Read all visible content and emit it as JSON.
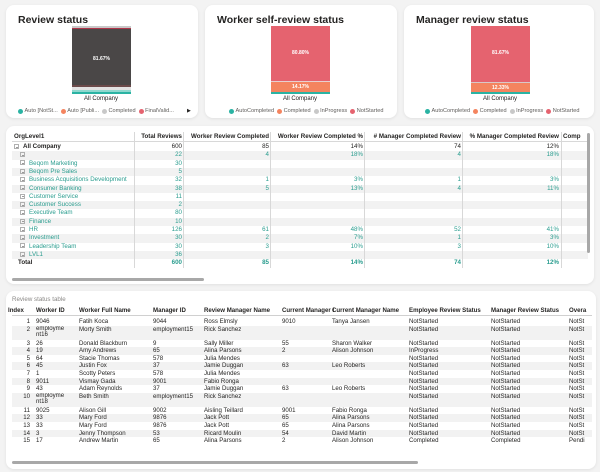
{
  "charts": {
    "review_status": {
      "title": "Review status",
      "category": "All Company",
      "label": "81.67%",
      "legend": [
        {
          "name": "Auto [NotSt...",
          "color": "#2ab3a3"
        },
        {
          "name": "Auto [Publi...",
          "color": "#f4845f"
        },
        {
          "name": "Completed",
          "color": "#c8c8c8"
        },
        {
          "name": "FinalValid...",
          "color": "#e5636f"
        }
      ],
      "more_icon": "triangle-right-icon"
    },
    "worker_self_review": {
      "title": "Worker self-review status",
      "category": "All Company",
      "labels": {
        "not_started": "80.80%",
        "completed": "14.17%"
      },
      "legend": [
        {
          "name": "AutoCompleted",
          "color": "#2ab3a3"
        },
        {
          "name": "Completed",
          "color": "#f4845f"
        },
        {
          "name": "InProgress",
          "color": "#c8c8c8"
        },
        {
          "name": "NotStarted",
          "color": "#e5636f"
        }
      ]
    },
    "manager_review": {
      "title": "Manager review status",
      "category": "All Company",
      "labels": {
        "not_started": "81.67%",
        "completed": "12.33%"
      },
      "legend": [
        {
          "name": "AutoCompleted",
          "color": "#2ab3a3"
        },
        {
          "name": "Completed",
          "color": "#f4845f"
        },
        {
          "name": "InProgress",
          "color": "#c8c8c8"
        },
        {
          "name": "NotStarted",
          "color": "#e5636f"
        }
      ]
    }
  },
  "matrix": {
    "headers": [
      "OrgLevel1",
      "Total Reviews",
      "Worker Review Completed",
      "Worker Review Completed %",
      "# Manager Completed Review",
      "% Manager Completed Review",
      "Comp"
    ],
    "rows": [
      {
        "org": "All Company",
        "total": "600",
        "wrc": "85",
        "wrcp": "14%",
        "mcr": "74",
        "pmcr": "12%",
        "top": true
      },
      {
        "org": "",
        "total": "22",
        "wrc": "4",
        "wrcp": "18%",
        "mcr": "4",
        "pmcr": "18%"
      },
      {
        "org": "Beqom Marketing",
        "total": "30",
        "wrc": "",
        "wrcp": "",
        "mcr": "",
        "pmcr": ""
      },
      {
        "org": "Beqom Pre Sales",
        "total": "5",
        "wrc": "",
        "wrcp": "",
        "mcr": "",
        "pmcr": ""
      },
      {
        "org": "Business Acquisitions Development",
        "total": "32",
        "wrc": "1",
        "wrcp": "3%",
        "mcr": "1",
        "pmcr": "3%"
      },
      {
        "org": "Consumer Banking",
        "total": "38",
        "wrc": "5",
        "wrcp": "13%",
        "mcr": "4",
        "pmcr": "11%"
      },
      {
        "org": "Customer Service",
        "total": "11",
        "wrc": "",
        "wrcp": "",
        "mcr": "",
        "pmcr": ""
      },
      {
        "org": "Customer Success",
        "total": "2",
        "wrc": "",
        "wrcp": "",
        "mcr": "",
        "pmcr": ""
      },
      {
        "org": "Executive Team",
        "total": "80",
        "wrc": "",
        "wrcp": "",
        "mcr": "",
        "pmcr": ""
      },
      {
        "org": "Finance",
        "total": "10",
        "wrc": "",
        "wrcp": "",
        "mcr": "",
        "pmcr": ""
      },
      {
        "org": "HR",
        "total": "126",
        "wrc": "61",
        "wrcp": "48%",
        "mcr": "52",
        "pmcr": "41%"
      },
      {
        "org": "Investment",
        "total": "30",
        "wrc": "2",
        "wrcp": "7%",
        "mcr": "1",
        "pmcr": "3%"
      },
      {
        "org": "Leadership Team",
        "total": "30",
        "wrc": "3",
        "wrcp": "10%",
        "mcr": "3",
        "pmcr": "10%"
      },
      {
        "org": "LVL1",
        "total": "36",
        "wrc": "",
        "wrcp": "",
        "mcr": "",
        "pmcr": ""
      }
    ],
    "total": {
      "label": "Total",
      "total": "600",
      "wrc": "85",
      "wrcp": "14%",
      "mcr": "74",
      "pmcr": "12%"
    }
  },
  "table": {
    "title": "Review status table",
    "headers": [
      "Index",
      "Worker ID",
      "Worker Full Name",
      "Manager ID",
      "Review Manager Name",
      "Current Manager ID",
      "Current Manager Name",
      "Employee Review Status",
      "Manager Review Status",
      "Overa"
    ],
    "rows": [
      [
        "1",
        "9046",
        "Fatih Koca",
        "9044",
        "Ross Elmsly",
        "9010",
        "Tanya Jansen",
        "NotStarted",
        "NotStarted",
        "NotSt"
      ],
      [
        "2",
        "employme nt16",
        "Morty Smith",
        "employment15",
        "Rick Sanchez",
        "",
        "",
        "NotStarted",
        "NotStarted",
        "NotSt"
      ],
      [
        "3",
        "26",
        "Donald Blackburn",
        "9",
        "Sally Miller",
        "55",
        "Sharon Walker",
        "NotStarted",
        "NotStarted",
        "NotSt"
      ],
      [
        "4",
        "19",
        "Amy Andrews",
        "65",
        "Alina Parsons",
        "2",
        "Alison Johnson",
        "InProgress",
        "NotStarted",
        "NotSt"
      ],
      [
        "5",
        "64",
        "Stacie Thomas",
        "578",
        "Julia Mendes",
        "",
        "",
        "NotStarted",
        "NotStarted",
        "NotSt"
      ],
      [
        "6",
        "45",
        "Justin Fox",
        "37",
        "Jamie Duggan",
        "63",
        "Leo Roberts",
        "NotStarted",
        "NotStarted",
        "NotSt"
      ],
      [
        "7",
        "1",
        "Scotty Peters",
        "578",
        "Julia Mendes",
        "",
        "",
        "NotStarted",
        "NotStarted",
        "NotSt"
      ],
      [
        "8",
        "9011",
        "Vismay Gada",
        "9001",
        "Fabio Ronga",
        "",
        "",
        "NotStarted",
        "NotStarted",
        "NotSt"
      ],
      [
        "9",
        "43",
        "Adam Reynolds",
        "37",
        "Jamie Duggan",
        "63",
        "Leo Roberts",
        "NotStarted",
        "NotStarted",
        "NotSt"
      ],
      [
        "10",
        "employme nt18",
        "Beth Smith",
        "employment15",
        "Rick Sanchez",
        "",
        "",
        "NotStarted",
        "NotStarted",
        "NotSt"
      ],
      [
        "11",
        "9025",
        "Alison Gill",
        "9002",
        "Aisling Teillard",
        "9001",
        "Fabio Ronga",
        "NotStarted",
        "NotStarted",
        "NotSt"
      ],
      [
        "12",
        "33",
        "Mary Ford",
        "9876",
        "Jack Pott",
        "65",
        "Alina Parsons",
        "NotStarted",
        "NotStarted",
        "NotSt"
      ],
      [
        "13",
        "33",
        "Mary Ford",
        "9876",
        "Jack Pott",
        "65",
        "Alina Parsons",
        "NotStarted",
        "NotStarted",
        "NotSt"
      ],
      [
        "14",
        "3",
        "Jenny Thompson",
        "53",
        "Ricard Moulin",
        "54",
        "David Martin",
        "NotStarted",
        "NotStarted",
        "NotSt"
      ],
      [
        "15",
        "17",
        "Andrew Martin",
        "65",
        "Alina Parsons",
        "2",
        "Alison Johnson",
        "Completed",
        "Completed",
        "Pendi"
      ]
    ]
  }
}
